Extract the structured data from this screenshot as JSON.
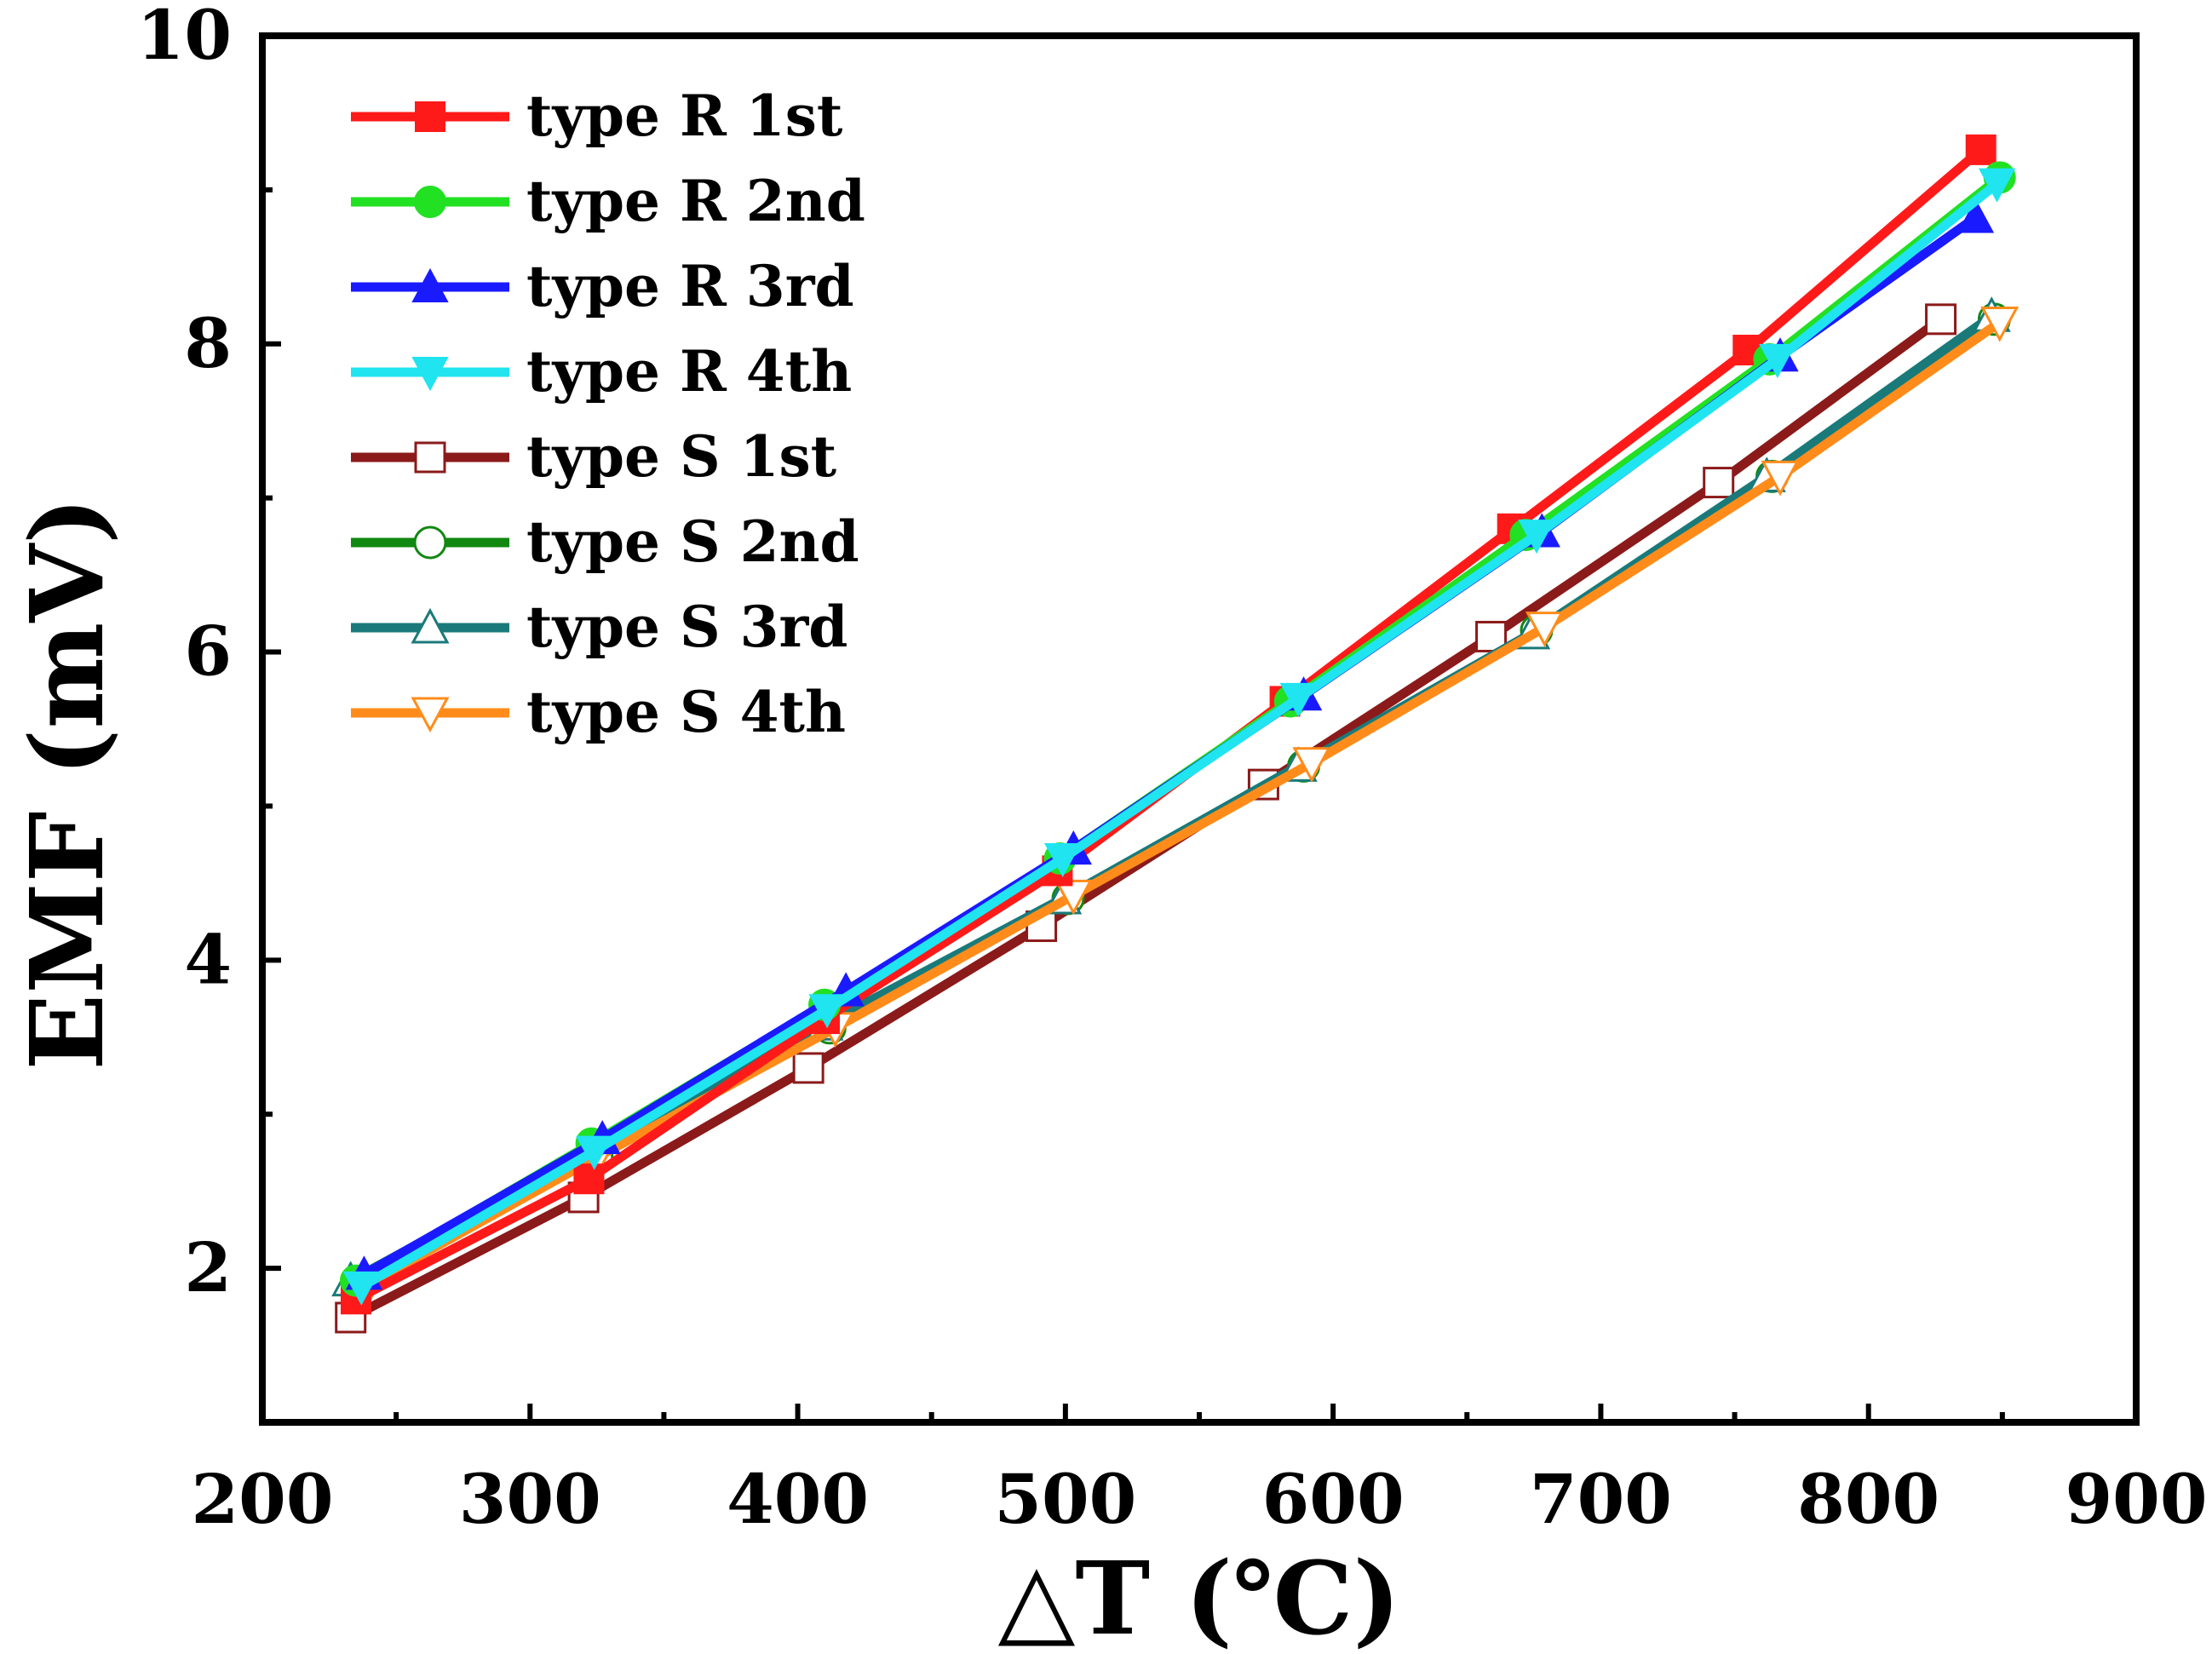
{
  "chart_data": {
    "type": "line",
    "title": "",
    "xlabel": "△T (℃)",
    "ylabel": "EMF (mV)",
    "xlim": [
      200,
      900
    ],
    "ylim": [
      1,
      10
    ],
    "xticks": [
      200,
      300,
      400,
      500,
      600,
      700,
      800,
      900
    ],
    "yticks": [
      2,
      4,
      6,
      8,
      10
    ],
    "xtick_labels": [
      "200",
      "300",
      "400",
      "500",
      "600",
      "700",
      "800",
      "900"
    ],
    "ytick_labels": [
      "2",
      "4",
      "6",
      "8",
      "10"
    ],
    "legend_position": "top-left",
    "series": [
      {
        "name": "type R 1st",
        "color": "#ff1a1a",
        "marker": "square",
        "filled": true,
        "x": [
          235,
          322,
          410,
          497,
          582,
          667,
          755,
          842
        ],
        "y": [
          1.8,
          2.58,
          3.62,
          4.58,
          5.68,
          6.8,
          7.96,
          9.26
        ]
      },
      {
        "name": "type R 2nd",
        "color": "#22e022",
        "marker": "circle",
        "filled": true,
        "x": [
          235,
          323,
          410,
          498,
          584,
          672,
          763,
          849
        ],
        "y": [
          1.92,
          2.81,
          3.71,
          4.66,
          5.68,
          6.76,
          7.9,
          9.08
        ]
      },
      {
        "name": "type R 3rd",
        "color": "#1a1aff",
        "marker": "triangle-up",
        "filled": true,
        "x": [
          238,
          327,
          418,
          503,
          589,
          678,
          767,
          840
        ],
        "y": [
          1.96,
          2.84,
          3.8,
          4.72,
          5.72,
          6.78,
          7.92,
          8.82
        ]
      },
      {
        "name": "type R 4th",
        "color": "#20e4f0",
        "marker": "triangle-down",
        "filled": true,
        "x": [
          237,
          324,
          411,
          499,
          587,
          676,
          766,
          848
        ],
        "y": [
          1.88,
          2.76,
          3.68,
          4.66,
          5.7,
          6.76,
          7.9,
          9.04
        ]
      },
      {
        "name": "type S 1st",
        "color": "#8b1a1a",
        "marker": "square",
        "filled": false,
        "x": [
          233,
          320,
          404,
          491,
          574,
          659,
          744,
          827
        ],
        "y": [
          1.68,
          2.46,
          3.3,
          4.22,
          5.14,
          6.1,
          7.1,
          8.16
        ]
      },
      {
        "name": "type S 2nd",
        "color": "#118811",
        "marker": "circle",
        "filled": false,
        "x": [
          235,
          325,
          412,
          501,
          589,
          676,
          764,
          847
        ],
        "y": [
          1.88,
          2.72,
          3.56,
          4.4,
          5.26,
          6.14,
          7.14,
          8.16
        ]
      },
      {
        "name": "type S 3rd",
        "color": "#1a7a7a",
        "marker": "triangle-up",
        "filled": false,
        "x": [
          233,
          322,
          410,
          499,
          587,
          674,
          762,
          846
        ],
        "y": [
          1.92,
          2.76,
          3.58,
          4.4,
          5.26,
          6.12,
          7.14,
          8.18
        ]
      },
      {
        "name": "type S 4th",
        "color": "#ff8c1a",
        "marker": "triangle-down",
        "filled": false,
        "x": [
          240,
          325,
          414,
          503,
          592,
          679,
          767,
          849
        ],
        "y": [
          1.9,
          2.72,
          3.56,
          4.42,
          5.28,
          6.16,
          7.14,
          8.14
        ]
      }
    ]
  }
}
